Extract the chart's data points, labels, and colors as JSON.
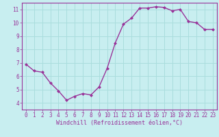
{
  "x": [
    0,
    1,
    2,
    3,
    4,
    5,
    6,
    7,
    8,
    9,
    10,
    11,
    12,
    13,
    14,
    15,
    16,
    17,
    18,
    19,
    20,
    21,
    22,
    23
  ],
  "y": [
    6.9,
    6.4,
    6.3,
    5.5,
    4.9,
    4.2,
    4.5,
    4.7,
    4.6,
    5.2,
    6.6,
    8.5,
    9.9,
    10.35,
    11.1,
    11.1,
    11.2,
    11.15,
    10.9,
    11.0,
    10.1,
    10.0,
    9.5,
    9.5
  ],
  "line_color": "#993399",
  "marker": "D",
  "marker_size": 2.0,
  "line_width": 1.0,
  "xlim": [
    -0.5,
    23.5
  ],
  "ylim": [
    3.5,
    11.5
  ],
  "xticks": [
    0,
    1,
    2,
    3,
    4,
    5,
    6,
    7,
    8,
    9,
    10,
    11,
    12,
    13,
    14,
    15,
    16,
    17,
    18,
    19,
    20,
    21,
    22,
    23
  ],
  "yticks": [
    4,
    5,
    6,
    7,
    8,
    9,
    10,
    11
  ],
  "xlabel": "Windchill (Refroidissement éolien,°C)",
  "background_color": "#c8eef0",
  "grid_color": "#aadddd",
  "tick_color": "#993399",
  "label_color": "#993399",
  "font_size_xlabel": 6.0,
  "font_size_ticks": 5.5
}
